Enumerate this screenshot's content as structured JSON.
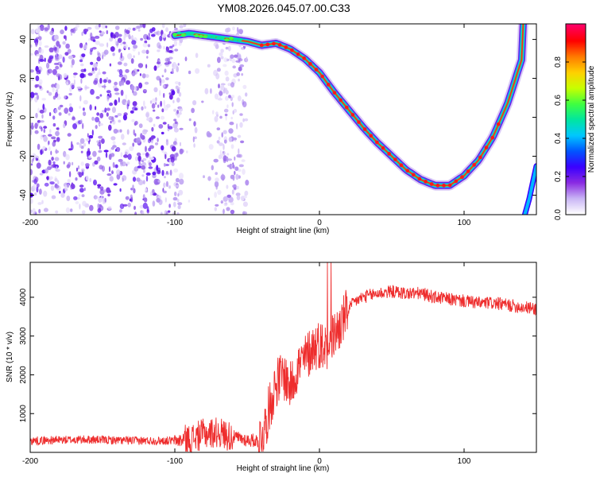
{
  "title": "YM08.2026.045.07.00.C33",
  "chart_data": [
    {
      "type": "heatmap",
      "xlabel": "Height of straight line (km)",
      "ylabel": "Frequency (Hz)",
      "xlim": [
        -200,
        150
      ],
      "ylim": [
        -50,
        48
      ],
      "x_ticks": [
        -200,
        -100,
        0,
        100
      ],
      "y_ticks": [
        -40,
        -20,
        0,
        20,
        40
      ],
      "colorbar": {
        "label": "Normalized spectral amplitude",
        "range": [
          0,
          1
        ],
        "ticks": [
          0.0,
          0.2,
          0.4,
          0.6,
          0.8
        ],
        "colors": [
          "#ffffff",
          "#c9b5f5",
          "#8a2be2",
          "#3a00ff",
          "#0055ff",
          "#00c8ff",
          "#00e6a0",
          "#40ff40",
          "#c8ff00",
          "#ffd000",
          "#ff7a00",
          "#ff0000",
          "#ff0066"
        ]
      },
      "noise_region": {
        "x": [
          -200,
          -50
        ],
        "y": [
          -50,
          48
        ]
      },
      "ridge": {
        "x": [
          -100,
          -90,
          -80,
          -70,
          -60,
          -50,
          -40,
          -30,
          -20,
          -10,
          0,
          10,
          20,
          30,
          40,
          50,
          60,
          70,
          80,
          90,
          100,
          110,
          120,
          130,
          140,
          141
        ],
        "y": [
          42,
          43,
          42,
          41,
          40,
          39,
          37,
          38,
          35,
          30,
          23,
          13,
          4,
          -5,
          -13,
          -20,
          -27,
          -32,
          -35,
          -35,
          -30,
          -22,
          -10,
          7,
          30,
          50
        ]
      },
      "secondary_ridge": {
        "x": [
          142,
          145,
          150
        ],
        "y": [
          -50,
          -42,
          -25
        ]
      }
    },
    {
      "type": "line",
      "xlabel": "Height of straight line (km)",
      "ylabel": "SNR (10 * v/v)",
      "xlim": [
        -200,
        150
      ],
      "ylim": [
        0,
        4900
      ],
      "x_ticks": [
        -200,
        -100,
        0,
        100
      ],
      "y_ticks": [
        1000,
        2000,
        3000,
        4000
      ],
      "color": "#ee2d2d",
      "x": [
        -200,
        -180,
        -160,
        -140,
        -120,
        -100,
        -90,
        -80,
        -70,
        -60,
        -50,
        -42,
        -38,
        -35,
        -30,
        -25,
        -20,
        -15,
        -10,
        -5,
        0,
        5,
        10,
        15,
        20,
        25,
        30,
        40,
        50,
        60,
        70,
        80,
        90,
        100,
        110,
        120,
        130,
        140,
        150
      ],
      "y": [
        300,
        320,
        330,
        310,
        300,
        300,
        330,
        480,
        520,
        400,
        320,
        300,
        600,
        1100,
        1800,
        2000,
        1700,
        2200,
        2400,
        2700,
        2800,
        2700,
        3000,
        3300,
        3700,
        3900,
        4000,
        4100,
        4150,
        4100,
        4100,
        4000,
        3950,
        3900,
        3850,
        3850,
        3800,
        3750,
        3700
      ]
    }
  ]
}
